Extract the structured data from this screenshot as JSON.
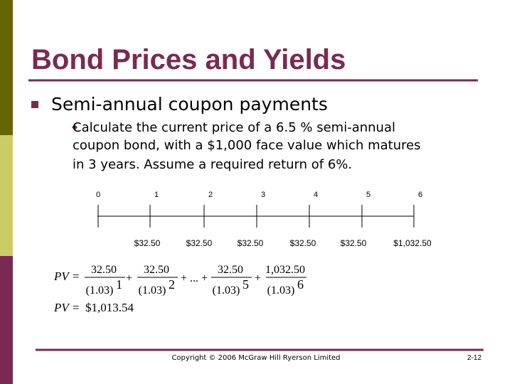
{
  "header": {
    "title": "Bond Prices and Yields"
  },
  "bullet": {
    "marker": "n",
    "text": "Semi-annual coupon payments"
  },
  "sub_bullet": {
    "lines": [
      "Calculate the current price of a 6.5 % semi-annual",
      "coupon bond, with a $1,000 face value which matures",
      "in 3 years. Assume a required return of 6%."
    ]
  },
  "timeline": {
    "periods": [
      "0",
      "1",
      "2",
      "3",
      "4",
      "5",
      "6"
    ],
    "cash_flows": [
      "$32.50",
      "$32.50",
      "$32.50",
      "$32.50",
      "$32.50",
      "$1,032.50"
    ]
  },
  "formula": {
    "lhs": "PV =",
    "plus": "+",
    "ellipsis": "+ ... +",
    "terms": [
      {
        "num": "32.50",
        "den": "(1.03)",
        "exp": "1"
      },
      {
        "num": "32.50",
        "den": "(1.03)",
        "exp": "2"
      },
      {
        "num": "32.50",
        "den": "(1.03)",
        "exp": "5"
      },
      {
        "num": "1,032.50",
        "den": "(1.03)",
        "exp": "6"
      }
    ],
    "result_lhs": "PV =",
    "result": "$1,013.54"
  },
  "footer": {
    "copyright": "Copyright © 2006 McGraw Hill Ryerson Limited",
    "page": "2-12"
  }
}
